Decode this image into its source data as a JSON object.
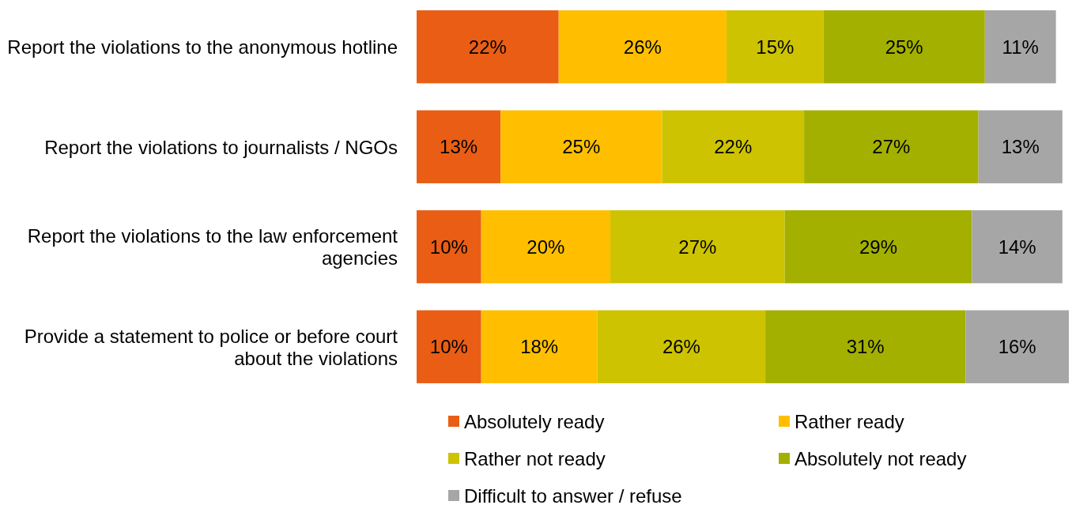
{
  "chart_data": {
    "type": "bar",
    "orientation": "horizontal",
    "stacked": true,
    "legend": "bottom",
    "categories": [
      "Report the violations to the anonymous hotline",
      "Report the violations to journalists / NGOs",
      "Report the violations to the law enforcement agencies",
      "Provide a statement to police or before court about the violations"
    ],
    "series": [
      {
        "name": "Absolutely ready",
        "color": "#e95e14",
        "values": [
          22,
          13,
          10,
          10
        ],
        "value_labels": [
          "22%",
          "13%",
          "10%",
          "10%"
        ]
      },
      {
        "name": "Rather ready",
        "color": "#ffbf00",
        "values": [
          26,
          25,
          20,
          18
        ],
        "value_labels": [
          "26%",
          "25%",
          "20%",
          "18%"
        ]
      },
      {
        "name": "Rather not ready",
        "color": "#cdc300",
        "values": [
          15,
          22,
          27,
          26
        ],
        "value_labels": [
          "15%",
          "22%",
          "27%",
          "26%"
        ]
      },
      {
        "name": "Absolutely not ready",
        "color": "#a3b000",
        "values": [
          25,
          27,
          29,
          31
        ],
        "value_labels": [
          "25%",
          "27%",
          "29%",
          "31%"
        ]
      },
      {
        "name": "Difficult to answer / refuse",
        "color": "#a6a6a6",
        "values": [
          11,
          13,
          14,
          16
        ],
        "value_labels": [
          "11%",
          "13%",
          "14%",
          "16%"
        ]
      }
    ]
  }
}
